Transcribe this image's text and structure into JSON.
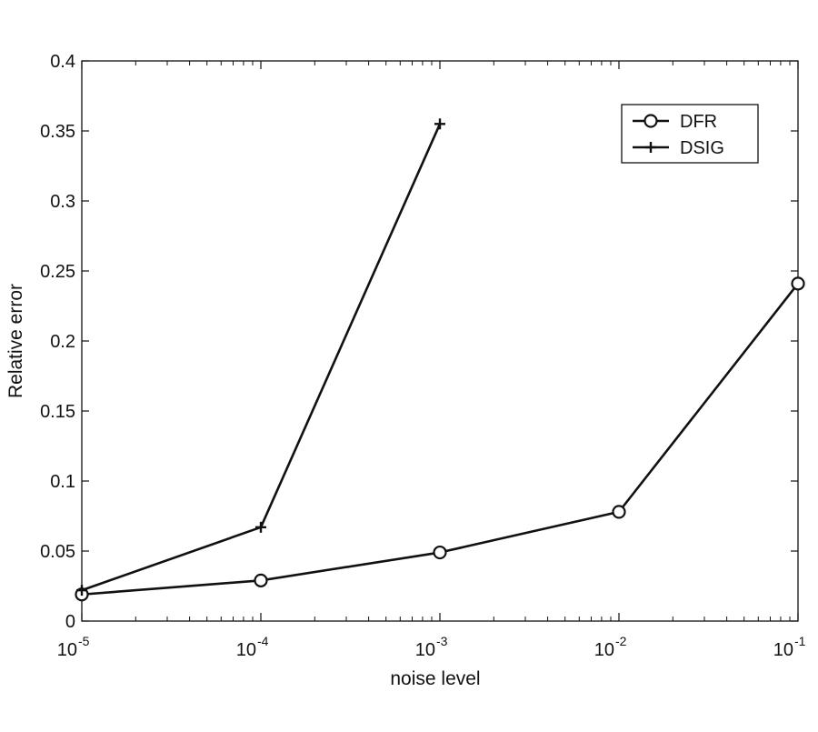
{
  "chart_data": {
    "type": "line",
    "title": "",
    "xlabel": "noise level",
    "ylabel": "Relative error",
    "xscale": "log",
    "x_ticks": [
      {
        "base": "10",
        "exp": "-5"
      },
      {
        "base": "10",
        "exp": "-4"
      },
      {
        "base": "10",
        "exp": "-3"
      },
      {
        "base": "10",
        "exp": "-2"
      },
      {
        "base": "10",
        "exp": "-1"
      }
    ],
    "xlim": [
      1e-05,
      0.1
    ],
    "ylim": [
      0,
      0.4
    ],
    "y_ticks": [
      "0",
      "0.05",
      "0.1",
      "0.15",
      "0.2",
      "0.25",
      "0.3",
      "0.35",
      "0.4"
    ],
    "grid": false,
    "legend_position": "top-right",
    "series": [
      {
        "name": "DFR",
        "marker": "circle",
        "color": "#111111",
        "x": [
          1e-05,
          0.0001,
          0.001,
          0.01,
          0.1
        ],
        "y": [
          0.019,
          0.029,
          0.049,
          0.078,
          0.241
        ]
      },
      {
        "name": "DSIG",
        "marker": "plus",
        "color": "#111111",
        "x": [
          1e-05,
          0.0001,
          0.001
        ],
        "y": [
          0.022,
          0.067,
          0.355
        ]
      }
    ]
  }
}
